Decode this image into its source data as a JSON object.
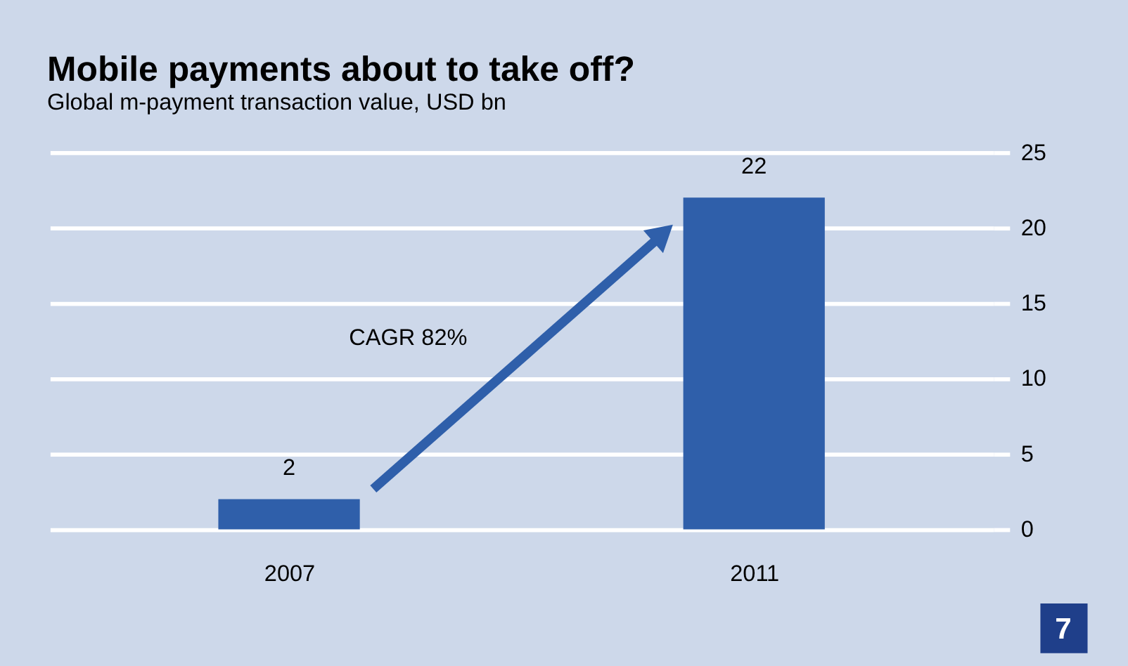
{
  "chart_data": {
    "type": "bar",
    "title": "Mobile payments about to take off?",
    "subtitle": "Global m-payment transaction value, USD bn",
    "categories": [
      "2007",
      "2011"
    ],
    "values": [
      2,
      22
    ],
    "color": "#2f5faa",
    "ylim": [
      0,
      25
    ],
    "yticks": [
      0,
      5,
      10,
      15,
      20,
      25
    ],
    "grid": "y",
    "data_labels": true,
    "annotations": [
      "CAGR 82%",
      "7"
    ]
  }
}
